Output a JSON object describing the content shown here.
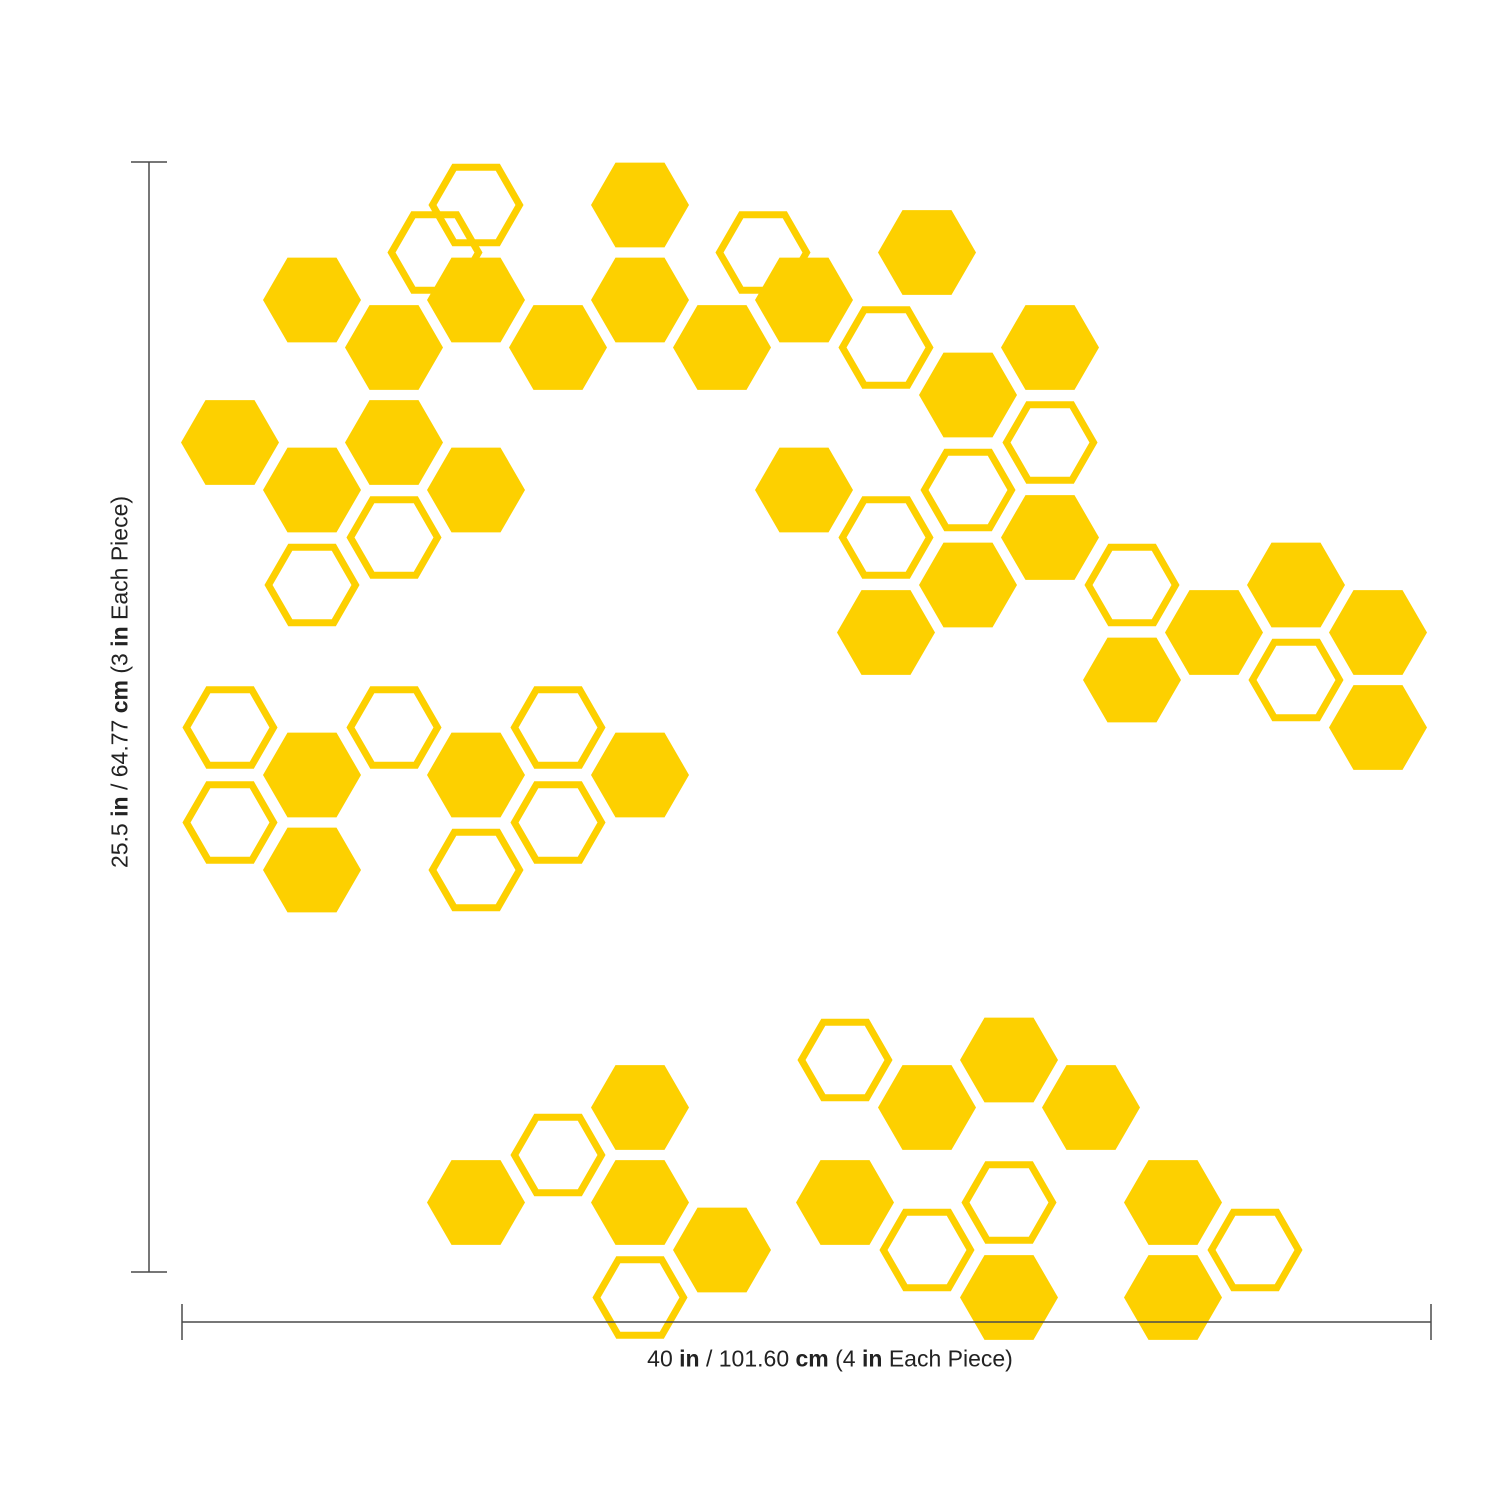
{
  "colors": {
    "hex": "#FDD000",
    "dimension": "#4a4a4a",
    "text": "#222222"
  },
  "dimensions": {
    "height": {
      "value": "25.5",
      "unit_a": "in",
      "sep": " / 64.77 ",
      "unit_b": "cm",
      "note_open": " (3 ",
      "note_unit": "in",
      "note_close": " Each Piece)"
    },
    "width": {
      "value": "40",
      "unit_a": "in",
      "sep": " / 101.60 ",
      "unit_b": "cm",
      "note_open": " (4 ",
      "note_unit": "in",
      "note_close": " Each Piece)"
    }
  },
  "hexagons": [
    {
      "style": "outline",
      "row": 0,
      "col": 6
    },
    {
      "style": "filled",
      "row": 0,
      "col": 10
    },
    {
      "style": "outline",
      "row": 1,
      "col": 5
    },
    {
      "style": "outline",
      "row": 1,
      "col": 13
    },
    {
      "style": "filled",
      "row": 1,
      "col": 17
    },
    {
      "style": "filled",
      "row": 2,
      "col": 2
    },
    {
      "style": "filled",
      "row": 2,
      "col": 6
    },
    {
      "style": "filled",
      "row": 2,
      "col": 10
    },
    {
      "style": "filled",
      "row": 2,
      "col": 14
    },
    {
      "style": "filled",
      "row": 3,
      "col": 4
    },
    {
      "style": "filled",
      "row": 3,
      "col": 8
    },
    {
      "style": "filled",
      "row": 3,
      "col": 12
    },
    {
      "style": "outline",
      "row": 3,
      "col": 16
    },
    {
      "style": "filled",
      "row": 3,
      "col": 20
    },
    {
      "style": "filled",
      "row": 4,
      "col": 18
    },
    {
      "style": "filled",
      "row": 5,
      "col": 0
    },
    {
      "style": "filled",
      "row": 5,
      "col": 4
    },
    {
      "style": "outline",
      "row": 5,
      "col": 20
    },
    {
      "style": "filled",
      "row": 6,
      "col": 2
    },
    {
      "style": "filled",
      "row": 6,
      "col": 6
    },
    {
      "style": "filled",
      "row": 6,
      "col": 14
    },
    {
      "style": "outline",
      "row": 6,
      "col": 18
    },
    {
      "style": "outline",
      "row": 7,
      "col": 4
    },
    {
      "style": "outline",
      "row": 7,
      "col": 16
    },
    {
      "style": "filled",
      "row": 7,
      "col": 20
    },
    {
      "style": "outline",
      "row": 8,
      "col": 2
    },
    {
      "style": "filled",
      "row": 8,
      "col": 18
    },
    {
      "style": "outline",
      "row": 8,
      "col": 22
    },
    {
      "style": "filled",
      "row": 8,
      "col": 26
    },
    {
      "style": "filled",
      "row": 9,
      "col": 16
    },
    {
      "style": "filled",
      "row": 9,
      "col": 24
    },
    {
      "style": "filled",
      "row": 9,
      "col": 28
    },
    {
      "style": "filled",
      "row": 10,
      "col": 22
    },
    {
      "style": "outline",
      "row": 10,
      "col": 26
    },
    {
      "style": "outline",
      "row": 11,
      "col": 0
    },
    {
      "style": "outline",
      "row": 11,
      "col": 4
    },
    {
      "style": "outline",
      "row": 11,
      "col": 8
    },
    {
      "style": "filled",
      "row": 11,
      "col": 28
    },
    {
      "style": "filled",
      "row": 12,
      "col": 2
    },
    {
      "style": "filled",
      "row": 12,
      "col": 6
    },
    {
      "style": "filled",
      "row": 12,
      "col": 10
    },
    {
      "style": "outline",
      "row": 13,
      "col": 0
    },
    {
      "style": "outline",
      "row": 13,
      "col": 8
    },
    {
      "style": "filled",
      "row": 14,
      "col": 2
    },
    {
      "style": "outline",
      "row": 14,
      "col": 6
    },
    {
      "style": "outline",
      "row": 18,
      "col": 15
    },
    {
      "style": "filled",
      "row": 18,
      "col": 19
    },
    {
      "style": "filled",
      "row": 19,
      "col": 10
    },
    {
      "style": "filled",
      "row": 19,
      "col": 17
    },
    {
      "style": "filled",
      "row": 19,
      "col": 21
    },
    {
      "style": "outline",
      "row": 20,
      "col": 8
    },
    {
      "style": "filled",
      "row": 21,
      "col": 6
    },
    {
      "style": "filled",
      "row": 21,
      "col": 10
    },
    {
      "style": "filled",
      "row": 21,
      "col": 15
    },
    {
      "style": "outline",
      "row": 21,
      "col": 19
    },
    {
      "style": "filled",
      "row": 21,
      "col": 23
    },
    {
      "style": "filled",
      "row": 22,
      "col": 12
    },
    {
      "style": "outline",
      "row": 22,
      "col": 17
    },
    {
      "style": "outline",
      "row": 22,
      "col": 25
    },
    {
      "style": "outline",
      "row": 23,
      "col": 10
    },
    {
      "style": "filled",
      "row": 23,
      "col": 19
    },
    {
      "style": "filled",
      "row": 23,
      "col": 23
    }
  ]
}
